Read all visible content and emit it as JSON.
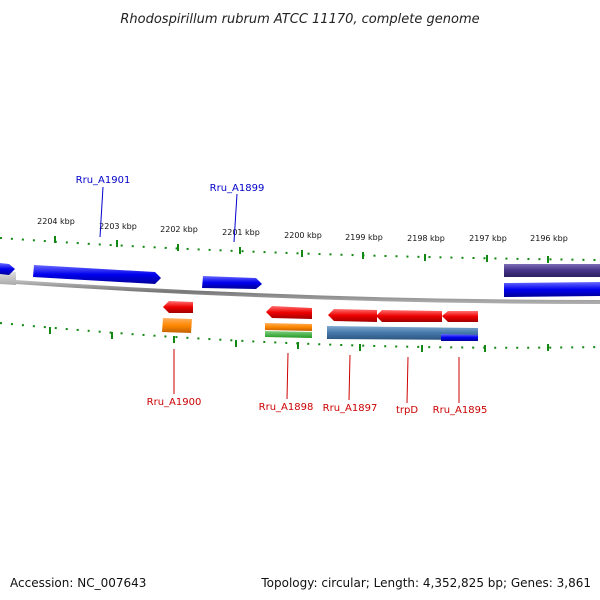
{
  "title": "Rhodospirillum rubrum ATCC 11170, complete genome",
  "footer": {
    "accession": "Accession: NC_007643",
    "summary": "Topology: circular; Length: 4,352,825 bp; Genes: 3,861"
  },
  "ticks": [
    "2204 kbp",
    "2203 kbp",
    "2202 kbp",
    "2201 kbp",
    "2200 kbp",
    "2199 kbp",
    "2198 kbp",
    "2197 kbp",
    "2196 kbp"
  ],
  "colors": {
    "forward_gene": "#0000ee",
    "reverse_gene": "#ee0000",
    "backbone": "#888888",
    "ticks": "#118811",
    "orange_feature": "#ff8800",
    "green_feature": "#33aa33",
    "steel_feature": "#4477aa",
    "dark_feature": "#443388",
    "grey_feature": "#bbbbbb"
  },
  "gene_labels": {
    "forward": [
      "Rru_A1901",
      "Rru_A1899"
    ],
    "reverse": [
      "Rru_A1900",
      "Rru_A1898",
      "Rru_A1897",
      "trpD",
      "Rru_A1895"
    ]
  }
}
